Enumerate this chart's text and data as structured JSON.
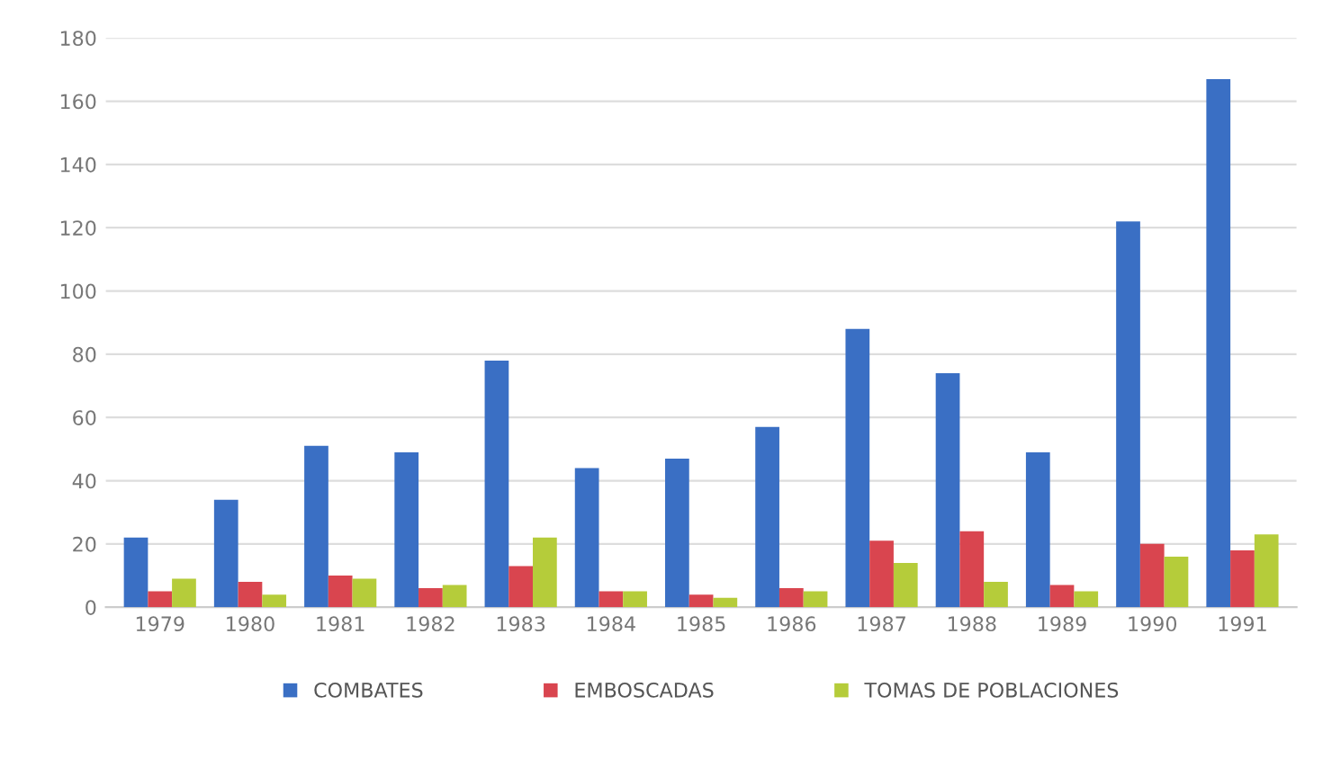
{
  "chart_data": {
    "type": "bar",
    "categories": [
      "1979",
      "1980",
      "1981",
      "1982",
      "1983",
      "1984",
      "1985",
      "1986",
      "1987",
      "1988",
      "1989",
      "1990",
      "1991"
    ],
    "series": [
      {
        "name": "COMBATES",
        "color": "#3a6fc4",
        "values": [
          22,
          34,
          51,
          49,
          78,
          44,
          47,
          57,
          88,
          74,
          49,
          122,
          167
        ]
      },
      {
        "name": "EMBOSCADAS",
        "color": "#d9454f",
        "values": [
          5,
          8,
          10,
          6,
          13,
          5,
          4,
          6,
          21,
          24,
          7,
          20,
          18
        ]
      },
      {
        "name": "TOMAS DE POBLACIONES",
        "color": "#b5cc3a",
        "values": [
          9,
          4,
          9,
          7,
          22,
          5,
          3,
          5,
          14,
          8,
          5,
          16,
          23
        ]
      }
    ],
    "ylim": [
      0,
      180
    ],
    "yticks": [
      0,
      20,
      40,
      60,
      80,
      100,
      120,
      140,
      160,
      180
    ],
    "grid": "y",
    "legend": "bottom"
  }
}
